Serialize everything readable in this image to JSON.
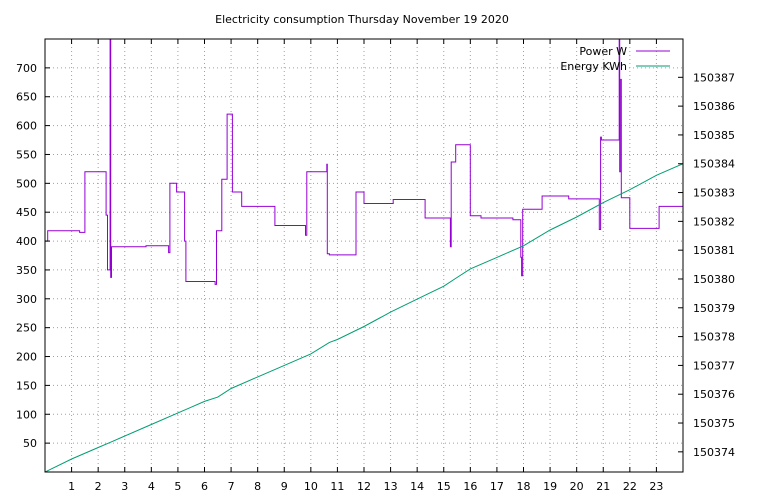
{
  "chart_data": {
    "type": "line",
    "title": "Electricity consumption Thursday November 19 2020",
    "xlabel": "",
    "ylabel": "",
    "y2label": "",
    "grid": true,
    "legend_position": "top-right",
    "xlim": [
      0,
      24
    ],
    "ylim": [
      0,
      750
    ],
    "y2lim": [
      150373.3,
      150388.33
    ],
    "x_ticks": [
      "1",
      "2",
      "3",
      "4",
      "5",
      "6",
      "7",
      "8",
      "9",
      "10",
      "11",
      "12",
      "13",
      "14",
      "15",
      "16",
      "17",
      "18",
      "19",
      "20",
      "21",
      "22",
      "23"
    ],
    "y_ticks": [
      "50",
      "100",
      "150",
      "200",
      "250",
      "300",
      "350",
      "400",
      "450",
      "500",
      "550",
      "600",
      "650",
      "700"
    ],
    "y2_ticks": [
      "150374",
      "150375",
      "150376",
      "150377",
      "150378",
      "150379",
      "150380",
      "150381",
      "150382",
      "150383",
      "150384",
      "150385",
      "150386",
      "150387"
    ],
    "series": [
      {
        "name": "Power W",
        "axis": "left",
        "color": "#9400d3",
        "points": [
          [
            0.0,
            400
          ],
          [
            0.1,
            400
          ],
          [
            0.1,
            418
          ],
          [
            1.3,
            418
          ],
          [
            1.3,
            415
          ],
          [
            1.5,
            415
          ],
          [
            1.5,
            520
          ],
          [
            2.3,
            520
          ],
          [
            2.3,
            445
          ],
          [
            2.35,
            445
          ],
          [
            2.35,
            350
          ],
          [
            2.45,
            350
          ],
          [
            2.45,
            750
          ],
          [
            2.47,
            750
          ],
          [
            2.47,
            337
          ],
          [
            2.5,
            337
          ],
          [
            2.5,
            390
          ],
          [
            3.8,
            390
          ],
          [
            3.8,
            392
          ],
          [
            4.65,
            392
          ],
          [
            4.65,
            380
          ],
          [
            4.7,
            380
          ],
          [
            4.7,
            500
          ],
          [
            4.95,
            500
          ],
          [
            4.95,
            485
          ],
          [
            5.25,
            485
          ],
          [
            5.25,
            400
          ],
          [
            5.3,
            400
          ],
          [
            5.3,
            330
          ],
          [
            6.4,
            330
          ],
          [
            6.4,
            325
          ],
          [
            6.45,
            325
          ],
          [
            6.45,
            418
          ],
          [
            6.65,
            418
          ],
          [
            6.65,
            507
          ],
          [
            6.85,
            507
          ],
          [
            6.85,
            620
          ],
          [
            7.05,
            620
          ],
          [
            7.05,
            485
          ],
          [
            7.4,
            485
          ],
          [
            7.4,
            460
          ],
          [
            8.65,
            460
          ],
          [
            8.65,
            427
          ],
          [
            9.8,
            427
          ],
          [
            9.8,
            410
          ],
          [
            9.85,
            410
          ],
          [
            9.85,
            520
          ],
          [
            10.6,
            520
          ],
          [
            10.6,
            533
          ],
          [
            10.62,
            533
          ],
          [
            10.62,
            378
          ],
          [
            10.7,
            378
          ],
          [
            10.7,
            376
          ],
          [
            11.7,
            376
          ],
          [
            11.7,
            485
          ],
          [
            12.0,
            485
          ],
          [
            12.0,
            465
          ],
          [
            13.1,
            465
          ],
          [
            13.1,
            472
          ],
          [
            14.3,
            472
          ],
          [
            14.3,
            440
          ],
          [
            15.25,
            440
          ],
          [
            15.25,
            390
          ],
          [
            15.28,
            390
          ],
          [
            15.28,
            537
          ],
          [
            15.45,
            537
          ],
          [
            15.45,
            567
          ],
          [
            16.0,
            567
          ],
          [
            16.0,
            444
          ],
          [
            16.4,
            444
          ],
          [
            16.4,
            440
          ],
          [
            17.6,
            440
          ],
          [
            17.6,
            437
          ],
          [
            17.9,
            437
          ],
          [
            17.9,
            372
          ],
          [
            17.93,
            372
          ],
          [
            17.93,
            340
          ],
          [
            17.97,
            340
          ],
          [
            17.97,
            455
          ],
          [
            18.7,
            455
          ],
          [
            18.7,
            478
          ],
          [
            19.7,
            478
          ],
          [
            19.7,
            473
          ],
          [
            20.85,
            473
          ],
          [
            20.85,
            420
          ],
          [
            20.9,
            420
          ],
          [
            20.9,
            580
          ],
          [
            20.93,
            580
          ],
          [
            20.93,
            575
          ],
          [
            21.6,
            575
          ],
          [
            21.6,
            750
          ],
          [
            21.62,
            750
          ],
          [
            21.62,
            520
          ],
          [
            21.66,
            520
          ],
          [
            21.66,
            680
          ],
          [
            21.68,
            680
          ],
          [
            21.68,
            475
          ],
          [
            22.0,
            475
          ],
          [
            22.0,
            422
          ],
          [
            23.1,
            422
          ],
          [
            23.1,
            460
          ],
          [
            24.0,
            460
          ]
        ]
      },
      {
        "name": "Energy KWh",
        "axis": "right",
        "color": "#009e73",
        "points": [
          [
            0.0,
            150373.3
          ],
          [
            1.0,
            150373.75
          ],
          [
            2.0,
            150374.15
          ],
          [
            2.5,
            150374.35
          ],
          [
            3.0,
            150374.55
          ],
          [
            4.0,
            150374.95
          ],
          [
            5.0,
            150375.35
          ],
          [
            5.5,
            150375.55
          ],
          [
            6.0,
            150375.75
          ],
          [
            6.5,
            150375.9
          ],
          [
            7.0,
            150376.2
          ],
          [
            8.0,
            150376.6
          ],
          [
            9.0,
            150377.0
          ],
          [
            10.0,
            150377.4
          ],
          [
            10.7,
            150377.8
          ],
          [
            11.0,
            150377.9
          ],
          [
            12.0,
            150378.35
          ],
          [
            13.0,
            150378.85
          ],
          [
            14.0,
            150379.3
          ],
          [
            15.0,
            150379.75
          ],
          [
            15.5,
            150380.05
          ],
          [
            16.0,
            150380.35
          ],
          [
            17.0,
            150380.75
          ],
          [
            18.0,
            150381.15
          ],
          [
            19.0,
            150381.7
          ],
          [
            20.0,
            150382.15
          ],
          [
            21.0,
            150382.65
          ],
          [
            22.0,
            150383.1
          ],
          [
            23.0,
            150383.6
          ],
          [
            24.0,
            150384.0
          ]
        ]
      }
    ]
  }
}
